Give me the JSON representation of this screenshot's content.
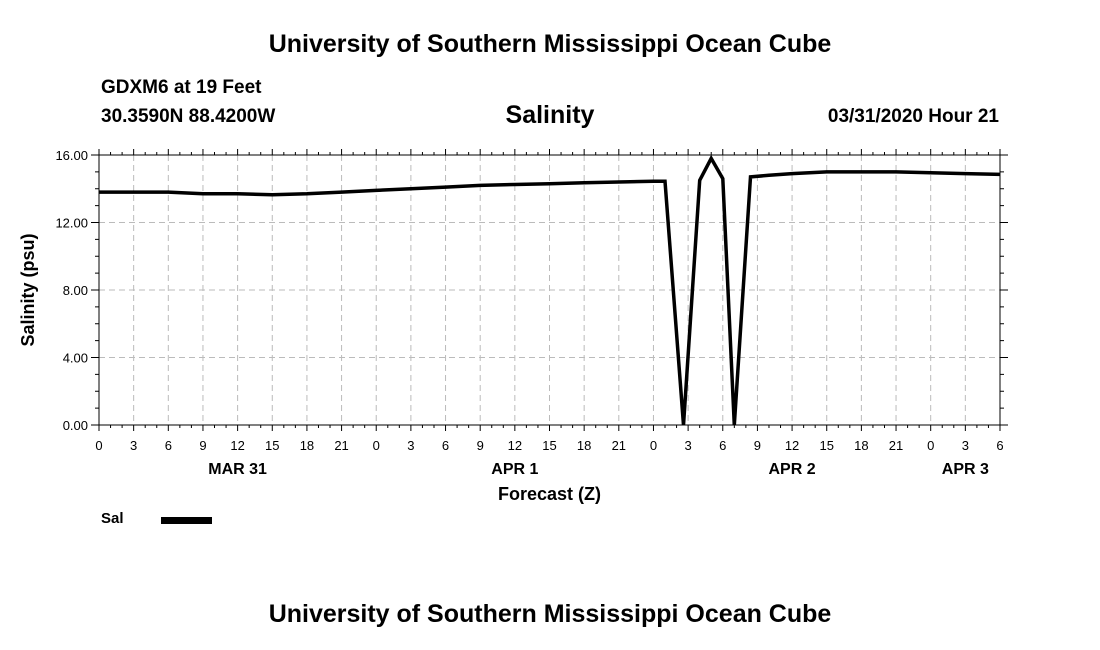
{
  "header": {
    "title": "University of Southern Mississippi Ocean Cube",
    "station": "GDXM6 at 19 Feet",
    "coordinates": "30.3590N 88.4200W",
    "chart_title": "Salinity",
    "datetime": "03/31/2020 Hour 21"
  },
  "footer": {
    "title": "University of Southern Mississippi Ocean Cube"
  },
  "legend": {
    "label": "Sal"
  },
  "chart_data": {
    "type": "line",
    "title": "Salinity",
    "xlabel": "Forecast (Z)",
    "ylabel": "Salinity (psu)",
    "ylim": [
      0,
      16
    ],
    "y_ticks": [
      "0.00",
      "4.00",
      "8.00",
      "12.00",
      "16.00"
    ],
    "x_range_hours": [
      0,
      78
    ],
    "x_tick_labels": [
      "0",
      "3",
      "6",
      "9",
      "12",
      "15",
      "18",
      "21",
      "0",
      "3",
      "6",
      "9",
      "12",
      "15",
      "18",
      "21",
      "0",
      "3",
      "6",
      "9",
      "12",
      "15",
      "18",
      "21",
      "0",
      "3",
      "6"
    ],
    "date_labels": [
      {
        "label": "MAR 31",
        "hour": 12
      },
      {
        "label": "APR 1",
        "hour": 36
      },
      {
        "label": "APR 2",
        "hour": 60
      },
      {
        "label": "APR 3",
        "hour": 75
      }
    ],
    "grid": true,
    "series": [
      {
        "name": "Sal",
        "color": "#000000",
        "x": [
          0,
          3,
          6,
          9,
          12,
          15,
          18,
          21,
          24,
          27,
          30,
          33,
          36,
          39,
          42,
          45,
          48,
          49,
          50.6,
          52,
          53,
          54,
          55,
          56.4,
          58,
          60,
          63,
          66,
          69,
          72,
          75,
          78
        ],
        "y": [
          13.8,
          13.8,
          13.8,
          13.7,
          13.7,
          13.65,
          13.7,
          13.8,
          13.9,
          14.0,
          14.1,
          14.2,
          14.25,
          14.3,
          14.35,
          14.4,
          14.45,
          14.45,
          0.0,
          14.5,
          15.8,
          14.6,
          0.0,
          14.7,
          14.8,
          14.9,
          15.0,
          15.0,
          15.0,
          14.95,
          14.9,
          14.85
        ]
      }
    ]
  }
}
